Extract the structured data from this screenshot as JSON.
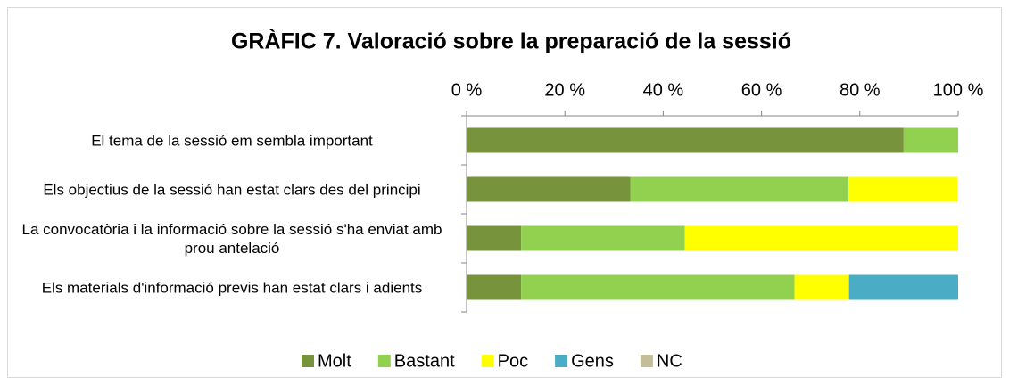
{
  "chart_data": {
    "type": "stacked-bar-horizontal",
    "title": "GRÀFIC 7. Valoració sobre la preparació de la sessió",
    "categories": [
      "El tema de la sessió em sembla important",
      "Els objectius de la sessió han estat clars des del principi",
      "La convocatòria i la informació sobre la sessió s'ha enviat amb prou antelació",
      "Els materials d'informació previs han estat clars i adients"
    ],
    "series": [
      {
        "name": "Molt",
        "color": "#77933c",
        "values": [
          88.9,
          33.3,
          11.1,
          11.1
        ]
      },
      {
        "name": "Bastant",
        "color": "#92d050",
        "values": [
          11.1,
          44.4,
          33.3,
          55.6
        ]
      },
      {
        "name": "Poc",
        "color": "#ffff00",
        "values": [
          0,
          22.2,
          55.6,
          11.1
        ]
      },
      {
        "name": "Gens",
        "color": "#4bacc6",
        "values": [
          0,
          0,
          0,
          22.2
        ]
      },
      {
        "name": "NC",
        "color": "#c4bd97",
        "values": [
          0,
          0,
          0,
          0
        ]
      }
    ],
    "xlim": [
      0,
      100
    ],
    "xticks": [
      {
        "value": 0,
        "label": "0 %"
      },
      {
        "value": 20,
        "label": "20 %"
      },
      {
        "value": 40,
        "label": "40 %"
      },
      {
        "value": 60,
        "label": "60 %"
      },
      {
        "value": 80,
        "label": "80 %"
      },
      {
        "value": 100,
        "label": "100 %"
      }
    ],
    "legend": "bottom"
  }
}
